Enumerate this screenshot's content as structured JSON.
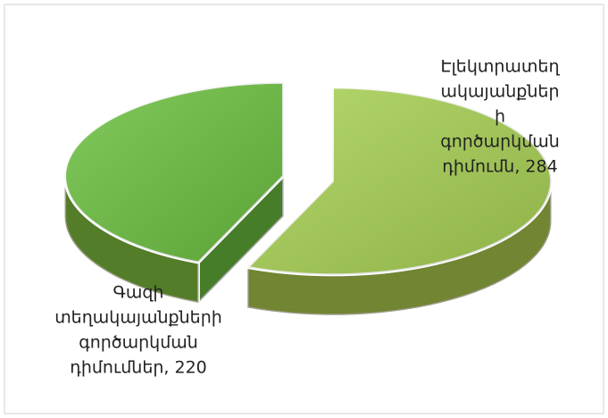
{
  "chart_data": {
    "type": "pie3d",
    "labels": [
      [
        "Էլեկտրատեղ",
        "ակայանքներ",
        "ի",
        "գործարկման",
        "դիմումն, 284"
      ],
      [
        "Գազի",
        "տեղակայանքների",
        "գործարկման",
        "դիմումներ, 220"
      ]
    ],
    "values": [
      284,
      220
    ],
    "colors": [
      "#a8d154",
      "#6cc040"
    ]
  }
}
